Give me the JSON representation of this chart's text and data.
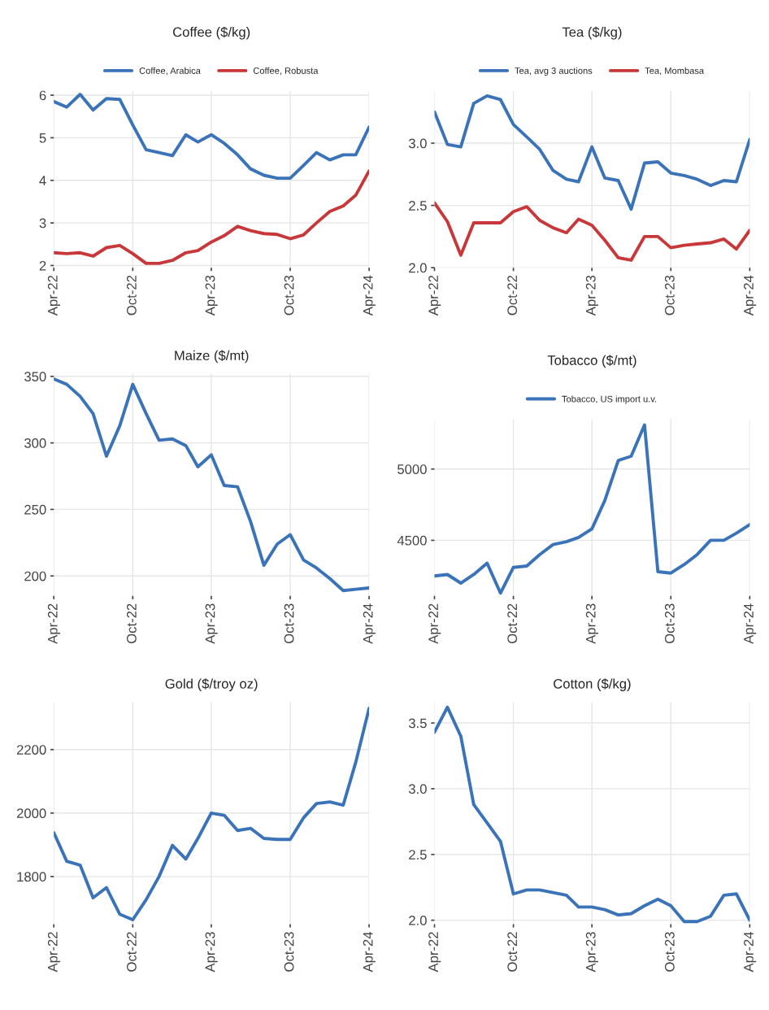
{
  "chart_data": [
    {
      "type": "line",
      "title": "Coffee ($/kg)",
      "legend": "top",
      "grid": true,
      "x": [
        "2022-04",
        "2022-05",
        "2022-06",
        "2022-07",
        "2022-08",
        "2022-09",
        "2022-10",
        "2022-11",
        "2022-12",
        "2023-01",
        "2023-02",
        "2023-03",
        "2023-04",
        "2023-05",
        "2023-06",
        "2023-07",
        "2023-08",
        "2023-09",
        "2023-10",
        "2023-11",
        "2023-12",
        "2024-01",
        "2024-02",
        "2024-03",
        "2024-04"
      ],
      "xlim": [
        "2022-04",
        "2024-04"
      ],
      "xticks": [
        {
          "value": "2022-04",
          "label": "Apr-22"
        },
        {
          "value": "2022-10",
          "label": "Oct-22"
        },
        {
          "value": "2023-04",
          "label": "Apr-23"
        },
        {
          "value": "2023-10",
          "label": "Oct-23"
        },
        {
          "value": "2024-04",
          "label": "Apr-24"
        }
      ],
      "ylim": [
        1.95,
        6.1
      ],
      "yticks": [
        2,
        3,
        4,
        5,
        6
      ],
      "series": [
        {
          "name": "Coffee, Arabica",
          "color": "#3b73b9",
          "values": [
            5.85,
            5.72,
            6.02,
            5.65,
            5.92,
            5.9,
            5.3,
            4.72,
            4.65,
            4.58,
            5.07,
            4.9,
            5.07,
            4.87,
            4.6,
            4.27,
            4.12,
            4.05,
            4.05,
            4.35,
            4.65,
            4.48,
            4.6,
            4.6,
            5.25
          ]
        },
        {
          "name": "Coffee, Robusta",
          "color": "#c8383a",
          "values": [
            2.3,
            2.28,
            2.3,
            2.22,
            2.42,
            2.47,
            2.28,
            2.05,
            2.05,
            2.12,
            2.3,
            2.35,
            2.55,
            2.7,
            2.92,
            2.82,
            2.75,
            2.73,
            2.63,
            2.72,
            3.0,
            3.27,
            3.4,
            3.65,
            4.22
          ]
        }
      ]
    },
    {
      "type": "line",
      "title": "Tea ($/kg)",
      "legend": "top",
      "grid": true,
      "x": [
        "2022-04",
        "2022-05",
        "2022-06",
        "2022-07",
        "2022-08",
        "2022-09",
        "2022-10",
        "2022-11",
        "2022-12",
        "2023-01",
        "2023-02",
        "2023-03",
        "2023-04",
        "2023-05",
        "2023-06",
        "2023-07",
        "2023-08",
        "2023-09",
        "2023-10",
        "2023-11",
        "2023-12",
        "2024-01",
        "2024-02",
        "2024-03",
        "2024-04"
      ],
      "xlim": [
        "2022-04",
        "2024-04"
      ],
      "xticks": [
        {
          "value": "2022-04",
          "label": "Apr-22"
        },
        {
          "value": "2022-10",
          "label": "Oct-22"
        },
        {
          "value": "2023-04",
          "label": "Apr-23"
        },
        {
          "value": "2023-10",
          "label": "Oct-23"
        },
        {
          "value": "2024-04",
          "label": "Apr-24"
        }
      ],
      "ylim": [
        2.0,
        3.42
      ],
      "yticks": [
        {
          "value": 2,
          "label": "2.0"
        },
        {
          "value": 2.5,
          "label": "2.5"
        },
        {
          "value": 3,
          "label": "3.0"
        }
      ],
      "series": [
        {
          "name": "Tea, avg 3 auctions",
          "color": "#3b73b9",
          "values": [
            3.25,
            2.99,
            2.97,
            3.32,
            3.38,
            3.35,
            3.15,
            3.05,
            2.95,
            2.78,
            2.71,
            2.69,
            2.97,
            2.72,
            2.7,
            2.47,
            2.84,
            2.85,
            2.76,
            2.74,
            2.71,
            2.66,
            2.7,
            2.69,
            3.03
          ]
        },
        {
          "name": "Tea, Mombasa",
          "color": "#c8383a",
          "values": [
            2.52,
            2.37,
            2.1,
            2.36,
            2.36,
            2.36,
            2.45,
            2.49,
            2.38,
            2.32,
            2.28,
            2.39,
            2.34,
            2.22,
            2.08,
            2.06,
            2.25,
            2.25,
            2.16,
            2.18,
            2.19,
            2.2,
            2.23,
            2.15,
            2.3
          ]
        }
      ]
    },
    {
      "type": "line",
      "title": "Maize ($/mt)",
      "grid": true,
      "x": [
        "2022-04",
        "2022-05",
        "2022-06",
        "2022-07",
        "2022-08",
        "2022-09",
        "2022-10",
        "2022-11",
        "2022-12",
        "2023-01",
        "2023-02",
        "2023-03",
        "2023-04",
        "2023-05",
        "2023-06",
        "2023-07",
        "2023-08",
        "2023-09",
        "2023-10",
        "2023-11",
        "2023-12",
        "2024-01",
        "2024-02",
        "2024-03",
        "2024-04"
      ],
      "xlim": [
        "2022-04",
        "2024-04"
      ],
      "xticks": [
        {
          "value": "2022-04",
          "label": "Apr-22"
        },
        {
          "value": "2022-10",
          "label": "Oct-22"
        },
        {
          "value": "2023-04",
          "label": "Apr-23"
        },
        {
          "value": "2023-10",
          "label": "Oct-23"
        },
        {
          "value": "2024-04",
          "label": "Apr-24"
        }
      ],
      "ylim": [
        185,
        352
      ],
      "yticks": [
        200,
        250,
        300,
        350
      ],
      "series": [
        {
          "color": "#3b73b9",
          "values": [
            348,
            344,
            335,
            322,
            290,
            313,
            344,
            322,
            302,
            303,
            298,
            282,
            291,
            268,
            267,
            241,
            208,
            224,
            231,
            212,
            206,
            198,
            189,
            190,
            191
          ]
        }
      ]
    },
    {
      "type": "line",
      "title": "Tobacco ($/mt)",
      "legend": "top",
      "grid": true,
      "x": [
        "2022-04",
        "2022-05",
        "2022-06",
        "2022-07",
        "2022-08",
        "2022-09",
        "2022-10",
        "2022-11",
        "2022-12",
        "2023-01",
        "2023-02",
        "2023-03",
        "2023-04",
        "2023-05",
        "2023-06",
        "2023-07",
        "2023-08",
        "2023-09",
        "2023-10",
        "2023-11",
        "2023-12",
        "2024-01",
        "2024-02",
        "2024-03",
        "2024-04"
      ],
      "xlim": [
        "2022-04",
        "2024-04"
      ],
      "xticks": [
        {
          "value": "2022-04",
          "label": "Apr-22"
        },
        {
          "value": "2022-10",
          "label": "Oct-22"
        },
        {
          "value": "2023-04",
          "label": "Apr-23"
        },
        {
          "value": "2023-10",
          "label": "Oct-23"
        },
        {
          "value": "2024-04",
          "label": "Apr-24"
        }
      ],
      "ylim": [
        4110,
        5350
      ],
      "yticks": [
        4500,
        5000
      ],
      "series": [
        {
          "name": "Tobacco, US import u.v.",
          "color": "#3b73b9",
          "values": [
            4250,
            4260,
            4200,
            4260,
            4340,
            4130,
            4310,
            4320,
            4400,
            4470,
            4490,
            4520,
            4580,
            4780,
            5060,
            5090,
            5310,
            4280,
            4270,
            4330,
            4400,
            4500,
            4500,
            4550,
            4610
          ]
        }
      ]
    },
    {
      "type": "line",
      "title": "Gold ($/troy oz)",
      "grid": true,
      "x": [
        "2022-04",
        "2022-05",
        "2022-06",
        "2022-07",
        "2022-08",
        "2022-09",
        "2022-10",
        "2022-11",
        "2022-12",
        "2023-01",
        "2023-02",
        "2023-03",
        "2023-04",
        "2023-05",
        "2023-06",
        "2023-07",
        "2023-08",
        "2023-09",
        "2023-10",
        "2023-11",
        "2023-12",
        "2024-01",
        "2024-02",
        "2024-03",
        "2024-04"
      ],
      "xlim": [
        "2022-04",
        "2024-04"
      ],
      "xticks": [
        {
          "value": "2022-04",
          "label": "Apr-22"
        },
        {
          "value": "2022-10",
          "label": "Oct-22"
        },
        {
          "value": "2023-04",
          "label": "Apr-23"
        },
        {
          "value": "2023-10",
          "label": "Oct-23"
        },
        {
          "value": "2024-04",
          "label": "Apr-24"
        }
      ],
      "ylim": [
        1650,
        2350
      ],
      "yticks": [
        1800,
        2000,
        2200
      ],
      "series": [
        {
          "color": "#3b73b9",
          "values": [
            1938,
            1848,
            1836,
            1733,
            1765,
            1681,
            1664,
            1727,
            1800,
            1898,
            1855,
            1920,
            2000,
            1993,
            1945,
            1952,
            1920,
            1917,
            1917,
            1985,
            2030,
            2035,
            2025,
            2160,
            2330
          ]
        }
      ]
    },
    {
      "type": "line",
      "title": "Cotton ($/kg)",
      "grid": true,
      "x": [
        "2022-04",
        "2022-05",
        "2022-06",
        "2022-07",
        "2022-08",
        "2022-09",
        "2022-10",
        "2022-11",
        "2022-12",
        "2023-01",
        "2023-02",
        "2023-03",
        "2023-04",
        "2023-05",
        "2023-06",
        "2023-07",
        "2023-08",
        "2023-09",
        "2023-10",
        "2023-11",
        "2023-12",
        "2024-01",
        "2024-02",
        "2024-03",
        "2024-04"
      ],
      "xlim": [
        "2022-04",
        "2024-04"
      ],
      "xticks": [
        {
          "value": "2022-04",
          "label": "Apr-22"
        },
        {
          "value": "2022-10",
          "label": "Oct-22"
        },
        {
          "value": "2023-04",
          "label": "Apr-23"
        },
        {
          "value": "2023-10",
          "label": "Oct-23"
        },
        {
          "value": "2024-04",
          "label": "Apr-24"
        }
      ],
      "ylim": [
        1.97,
        3.66
      ],
      "yticks": [
        {
          "value": 2,
          "label": "2.0"
        },
        {
          "value": 2.5,
          "label": "2.5"
        },
        {
          "value": 3,
          "label": "3.0"
        },
        {
          "value": 3.5,
          "label": "3.5"
        }
      ],
      "series": [
        {
          "color": "#3b73b9",
          "values": [
            3.43,
            3.62,
            3.4,
            2.88,
            2.74,
            2.6,
            2.2,
            2.23,
            2.23,
            2.21,
            2.19,
            2.1,
            2.1,
            2.08,
            2.04,
            2.05,
            2.11,
            2.16,
            2.11,
            1.99,
            1.99,
            2.03,
            2.19,
            2.2,
            2.0
          ]
        }
      ]
    }
  ]
}
